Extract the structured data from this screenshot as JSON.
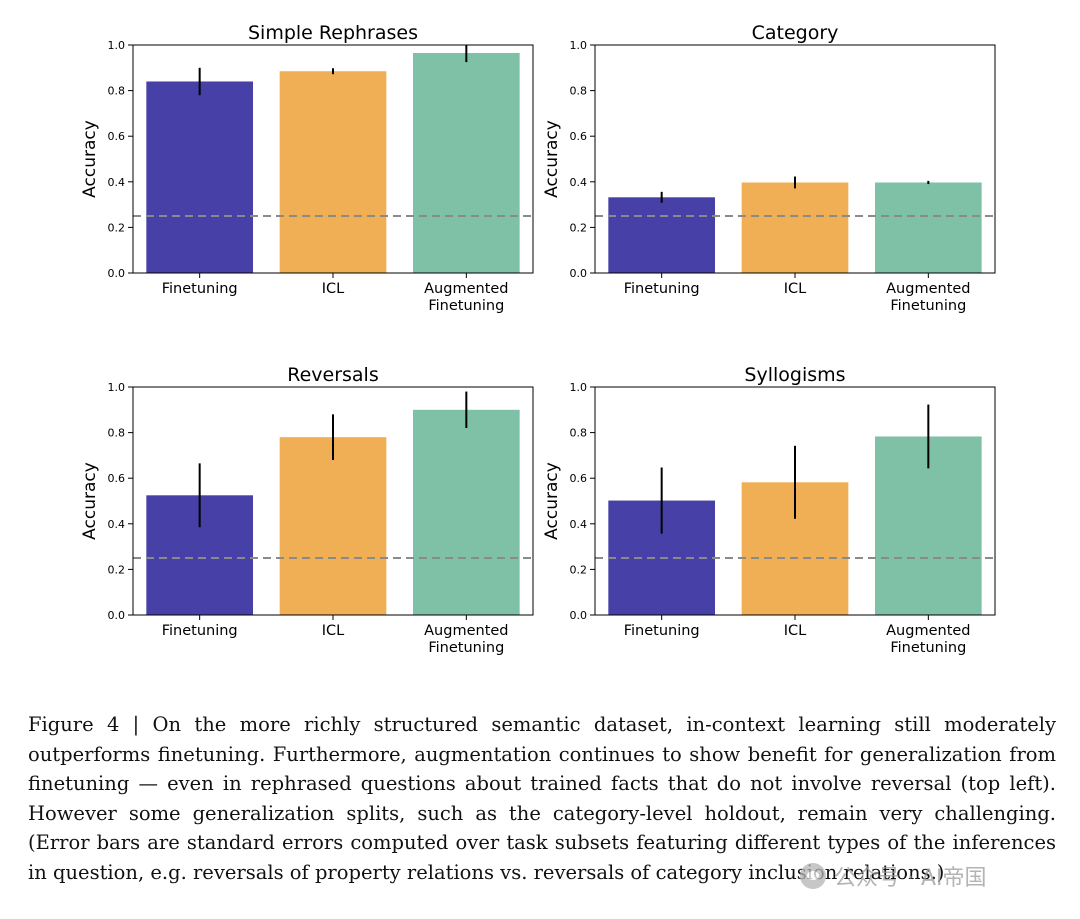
{
  "chart_data": [
    {
      "type": "bar",
      "title": "Simple Rephrases",
      "ylabel": "Accuracy",
      "xlabel": "",
      "categories": [
        "Finetuning",
        "ICL",
        "Augmented Finetuning"
      ],
      "values": [
        0.84,
        0.885,
        0.965
      ],
      "errors": [
        0.06,
        0.013,
        0.04
      ],
      "ylim": [
        0,
        1.0
      ],
      "yticks": [
        "0.0",
        "0.2",
        "0.4",
        "0.6",
        "0.8",
        "1.0"
      ],
      "baseline": 0.25
    },
    {
      "type": "bar",
      "title": "Category",
      "ylabel": "Accuracy",
      "xlabel": "",
      "categories": [
        "Finetuning",
        "ICL",
        "Augmented Finetuning"
      ],
      "values": [
        0.332,
        0.397,
        0.397
      ],
      "errors": [
        0.024,
        0.026,
        0.007
      ],
      "ylim": [
        0,
        1.0
      ],
      "yticks": [
        "0.0",
        "0.2",
        "0.4",
        "0.6",
        "0.8",
        "1.0"
      ],
      "baseline": 0.25
    },
    {
      "type": "bar",
      "title": "Reversals",
      "ylabel": "Accuracy",
      "xlabel": "",
      "categories": [
        "Finetuning",
        "ICL",
        "Augmented Finetuning"
      ],
      "values": [
        0.525,
        0.78,
        0.9
      ],
      "errors": [
        0.14,
        0.1,
        0.08
      ],
      "ylim": [
        0,
        1.0
      ],
      "yticks": [
        "0.0",
        "0.2",
        "0.4",
        "0.6",
        "0.8",
        "1.0"
      ],
      "baseline": 0.25
    },
    {
      "type": "bar",
      "title": "Syllogisms",
      "ylabel": "Accuracy",
      "xlabel": "",
      "categories": [
        "Finetuning",
        "ICL",
        "Augmented Finetuning"
      ],
      "values": [
        0.502,
        0.582,
        0.783
      ],
      "errors": [
        0.145,
        0.16,
        0.14
      ],
      "ylim": [
        0,
        1.0
      ],
      "yticks": [
        "0.0",
        "0.2",
        "0.4",
        "0.6",
        "0.8",
        "1.0"
      ],
      "baseline": 0.25
    }
  ],
  "colors": {
    "finetuning": "#4640a7",
    "icl": "#f0ae55",
    "augmented": "#7fc1a6",
    "baseline": "#8a8a8a",
    "error_bar": "#000000"
  },
  "caption": "Figure 4 | On the more richly structured semantic dataset, in-context learning still moderately outperforms finetuning. Furthermore, augmentation continues to show benefit for generalization from finetuning — even in rephrased questions about trained facts that do not involve reversal (top left). However some generalization splits, such as the category-level holdout, remain very challenging. (Error bars are standard errors computed over task subsets featuring different types of the inferences in question, e.g. reversals of property relations vs. reversals of category inclusion relations.)",
  "watermark": {
    "text": "公众号 · AI帝国"
  }
}
